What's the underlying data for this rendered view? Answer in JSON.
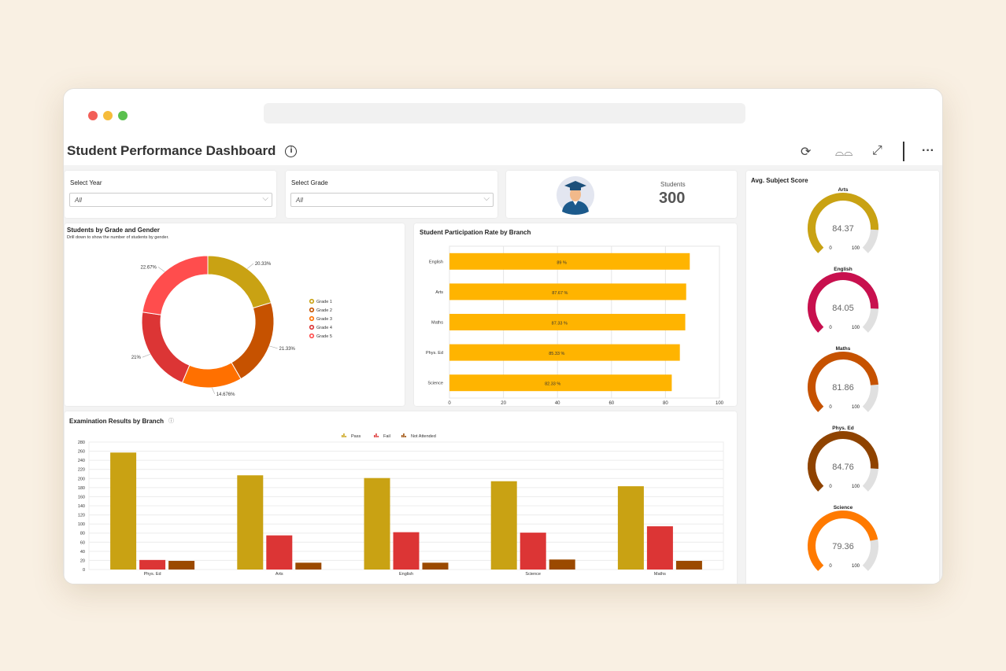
{
  "header": {
    "title": "Student Performance Dashboard",
    "info_icon": "info-icon",
    "toolbar": [
      "refresh-icon",
      "glasses-icon",
      "expand-icon",
      "more-icon"
    ]
  },
  "filters": {
    "year": {
      "label": "Select Year",
      "value": "All"
    },
    "grade": {
      "label": "Select Grade",
      "value": "All"
    }
  },
  "kpi": {
    "label": "Students",
    "value": "300"
  },
  "colors": {
    "pass": "#c9a213",
    "fail": "#dc3535",
    "not_attended": "#9b4a00",
    "participation": "#ffb400",
    "gauge_track": "#e0e0e0"
  },
  "gauges": {
    "title": "Avg. Subject Score",
    "items": [
      {
        "name": "Arts",
        "value": 84.37,
        "label": "84.37",
        "min": "0",
        "max": "100",
        "color": "#c9a213"
      },
      {
        "name": "English",
        "value": 84.05,
        "label": "84.05",
        "min": "0",
        "max": "100",
        "color": "#c8104e"
      },
      {
        "name": "Maths",
        "value": 81.86,
        "label": "81.86",
        "min": "0",
        "max": "100",
        "color": "#c65200"
      },
      {
        "name": "Phys. Ed",
        "value": 84.76,
        "label": "84.76",
        "min": "0",
        "max": "100",
        "color": "#8f4300"
      },
      {
        "name": "Science",
        "value": 79.36,
        "label": "79.36",
        "min": "0",
        "max": "100",
        "color": "#ff7a00"
      }
    ]
  },
  "chart_data": [
    {
      "type": "pie",
      "title": "Students by Grade and Gender",
      "subtitle": "Drill down to show the number of students by gender.",
      "legend": "right",
      "categories": [
        "Grade 1",
        "Grade 2",
        "Grade 3",
        "Grade 4",
        "Grade 5"
      ],
      "values": [
        20.33,
        21.33,
        14.676,
        21,
        22.67
      ],
      "labels": [
        "20.33%",
        "21.33%",
        "14.676%",
        "21%",
        "22.67%"
      ],
      "colors": [
        "#c9a213",
        "#c65200",
        "#ff7000",
        "#dc3535",
        "#ff4d4d"
      ]
    },
    {
      "type": "bar",
      "orientation": "horizontal",
      "title": "Student Participation Rate by Branch",
      "categories": [
        "English",
        "Arts",
        "Maths",
        "Phys. Ed",
        "Science"
      ],
      "values": [
        89,
        87.67,
        87.33,
        85.33,
        82.33
      ],
      "labels": [
        "89 %",
        "87.67 %",
        "87.33 %",
        "85.33 %",
        "82.33 %"
      ],
      "xlim": [
        0,
        100
      ],
      "xticks": [
        "0",
        "20",
        "40",
        "60",
        "80",
        "100"
      ],
      "grid": true
    },
    {
      "type": "bar",
      "title": "Examination Results by Branch",
      "legend": "top",
      "categories": [
        "Phys. Ed",
        "Arts",
        "English",
        "Science",
        "Maths"
      ],
      "series": [
        {
          "name": "Pass",
          "values": [
            257,
            207,
            201,
            194,
            183
          ]
        },
        {
          "name": "Fail",
          "values": [
            21,
            75,
            82,
            81,
            95
          ]
        },
        {
          "name": "Not Attended",
          "values": [
            19,
            15,
            15,
            22,
            19
          ]
        }
      ],
      "ylim": [
        0,
        280
      ],
      "yticks": [
        "0",
        "20",
        "40",
        "60",
        "80",
        "100",
        "120",
        "140",
        "160",
        "180",
        "200",
        "220",
        "240",
        "260",
        "280"
      ],
      "grid": true
    }
  ]
}
